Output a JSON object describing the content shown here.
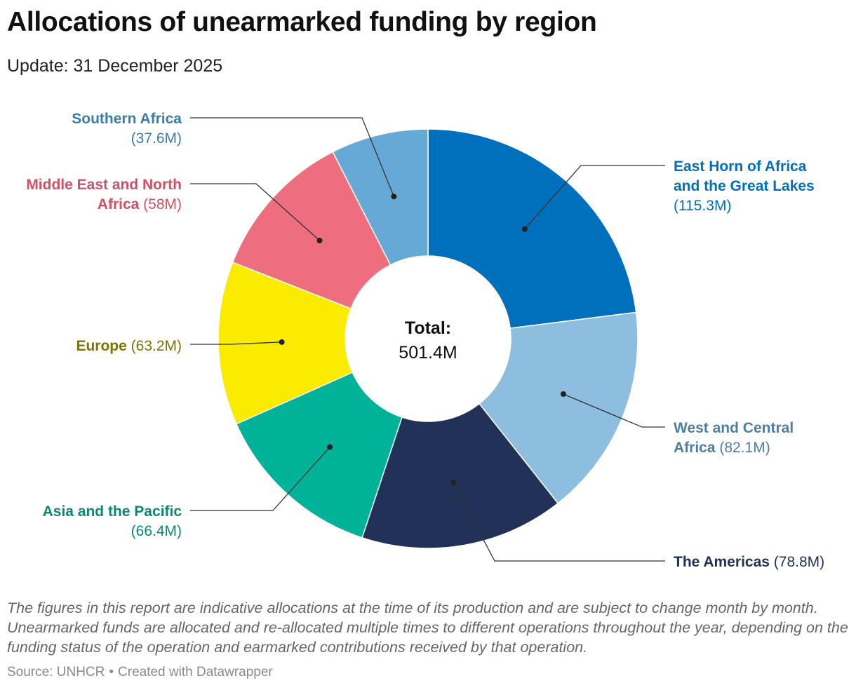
{
  "title": "Allocations of unearmarked funding by region",
  "subtitle": "Update: 31 December 2025",
  "chart_data": {
    "type": "pie",
    "variant": "donut",
    "title": "Allocations of unearmarked funding by region",
    "unit": "USD millions",
    "center_label": {
      "heading": "Total:",
      "value": "501.4M"
    },
    "total": 501.4,
    "slices": [
      {
        "name": "East Horn of Africa and the Great Lakes",
        "label_lines": [
          "East Horn of Africa",
          "and the Great Lakes"
        ],
        "value": 115.3,
        "value_label": "(115.3M)",
        "color": "#0070BC",
        "text_color": "#0070BC"
      },
      {
        "name": "West and Central Africa",
        "label_lines": [
          "West and Central",
          "Africa"
        ],
        "value": 82.1,
        "value_label": "(82.1M)",
        "color": "#8EBEDF",
        "text_color": "#4E7DA5"
      },
      {
        "name": "The Americas",
        "label_lines": [
          "The Americas"
        ],
        "value": 78.8,
        "value_label": "(78.8M)",
        "color": "#213158",
        "text_color": "#213158"
      },
      {
        "name": "Asia and the Pacific",
        "label_lines": [
          "Asia and the Pacific"
        ],
        "value": 66.4,
        "value_label": "(66.4M)",
        "color": "#00B398",
        "text_color": "#0A8A72"
      },
      {
        "name": "Europe",
        "label_lines": [
          "Europe"
        ],
        "value": 63.2,
        "value_label": "(63.2M)",
        "color": "#FAEB00",
        "text_color": "#7D7400"
      },
      {
        "name": "Middle East and North Africa",
        "label_lines": [
          "Middle East and North",
          "Africa"
        ],
        "value": 58.0,
        "value_label": "(58M)",
        "color": "#EF6E7E",
        "text_color": "#D05066"
      },
      {
        "name": "Southern Africa",
        "label_lines": [
          "Southern Africa"
        ],
        "value": 37.6,
        "value_label": "(37.6M)",
        "color": "#66A9D6",
        "text_color": "#3A7DAA"
      }
    ]
  },
  "notes": "The figures in this report are indicative allocations at the time of its production and are subject to change month by month. Unearmarked funds are allocated and re-allocated multiple times to different operations throughout the year, depending on the funding status of the operation and earmarked contributions received by that operation.",
  "source": {
    "prefix": "Source: ",
    "name": "UNHCR",
    "separator": "•",
    "credit": "Created with Datawrapper"
  }
}
